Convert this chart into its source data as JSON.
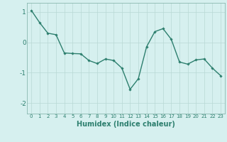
{
  "x": [
    0,
    1,
    2,
    3,
    4,
    5,
    6,
    7,
    8,
    9,
    10,
    11,
    12,
    13,
    14,
    15,
    16,
    17,
    18,
    19,
    20,
    21,
    22,
    23
  ],
  "y": [
    1.05,
    0.65,
    0.3,
    0.25,
    -0.35,
    -0.37,
    -0.38,
    -0.6,
    -0.7,
    -0.55,
    -0.6,
    -0.85,
    -1.55,
    -1.2,
    -0.15,
    0.35,
    0.45,
    0.1,
    -0.65,
    -0.72,
    -0.58,
    -0.55,
    -0.85,
    -1.1
  ],
  "line_color": "#2d7f6e",
  "marker": "D",
  "marker_size": 1.8,
  "bg_color": "#d6f0ef",
  "grid_color": "#b8d8d4",
  "tick_color": "#2d7f6e",
  "xlabel": "Humidex (Indice chaleur)",
  "xlabel_fontsize": 7,
  "yticks": [
    -2,
    -1,
    0,
    1
  ],
  "ylim": [
    -2.35,
    1.3
  ],
  "xlim": [
    -0.5,
    23.5
  ],
  "xtick_labels": [
    "0",
    "1",
    "2",
    "3",
    "4",
    "5",
    "6",
    "7",
    "8",
    "9",
    "10",
    "11",
    "12",
    "13",
    "14",
    "15",
    "16",
    "17",
    "18",
    "19",
    "20",
    "21",
    "22",
    "23"
  ],
  "line_width": 1.0
}
